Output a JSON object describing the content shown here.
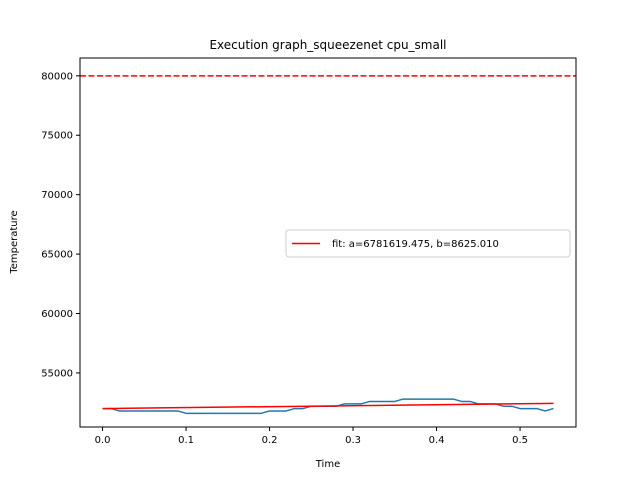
{
  "chart_data": {
    "type": "line",
    "title": "Execution graph_squeezenet cpu_small",
    "xlabel": "Time",
    "ylabel": "Temperature",
    "xlim": [
      -0.027,
      0.567
    ],
    "ylim": [
      50450,
      81500
    ],
    "xticks": [
      0.0,
      0.1,
      0.2,
      0.3,
      0.4,
      0.5
    ],
    "xtick_labels": [
      "0.0",
      "0.1",
      "0.2",
      "0.3",
      "0.4",
      "0.5"
    ],
    "yticks": [
      55000,
      60000,
      65000,
      70000,
      75000,
      80000
    ],
    "ytick_labels": [
      "55000",
      "60000",
      "65000",
      "70000",
      "75000",
      "80000"
    ],
    "grid": false,
    "legend_position": "center-right",
    "series": [
      {
        "type": "line",
        "color": "#1f77b4",
        "x": [
          0.0,
          0.01,
          0.02,
          0.03,
          0.04,
          0.05,
          0.06,
          0.07,
          0.08,
          0.09,
          0.1,
          0.11,
          0.12,
          0.13,
          0.14,
          0.15,
          0.16,
          0.17,
          0.18,
          0.19,
          0.2,
          0.21,
          0.22,
          0.23,
          0.24,
          0.25,
          0.26,
          0.27,
          0.28,
          0.29,
          0.3,
          0.31,
          0.32,
          0.33,
          0.34,
          0.35,
          0.36,
          0.37,
          0.38,
          0.39,
          0.4,
          0.41,
          0.42,
          0.43,
          0.44,
          0.45,
          0.46,
          0.47,
          0.48,
          0.49,
          0.5,
          0.51,
          0.52,
          0.53,
          0.54
        ],
        "y": [
          52000,
          52000,
          51800,
          51800,
          51800,
          51800,
          51800,
          51800,
          51800,
          51800,
          51600,
          51600,
          51600,
          51600,
          51600,
          51600,
          51600,
          51600,
          51600,
          51600,
          51800,
          51800,
          51800,
          52000,
          52000,
          52200,
          52200,
          52200,
          52200,
          52400,
          52400,
          52400,
          52600,
          52600,
          52600,
          52600,
          52800,
          52800,
          52800,
          52800,
          52800,
          52800,
          52800,
          52600,
          52600,
          52400,
          52400,
          52400,
          52200,
          52200,
          52000,
          52000,
          52000,
          51800,
          52000
        ]
      },
      {
        "name": "fit: a=6781619.475, b=8625.010",
        "type": "line",
        "color": "#ff0000",
        "x": [
          0.0,
          0.54
        ],
        "y": [
          52000,
          52440
        ]
      },
      {
        "type": "hline",
        "color": "#ff0000",
        "dash": true,
        "y": 80000
      }
    ]
  }
}
